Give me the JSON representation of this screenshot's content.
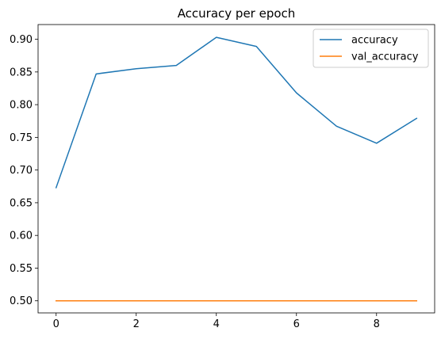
{
  "chart_data": {
    "type": "line",
    "title": "Accuracy per epoch",
    "xlabel": "",
    "ylabel": "",
    "x": [
      0,
      1,
      2,
      3,
      4,
      5,
      6,
      7,
      8,
      9
    ],
    "xlim": [
      -0.45,
      9.45
    ],
    "ylim": [
      0.4815,
      0.9225
    ],
    "xticks": [
      0,
      2,
      4,
      6,
      8
    ],
    "xtick_labels": [
      "0",
      "2",
      "4",
      "6",
      "8"
    ],
    "yticks": [
      0.5,
      0.55,
      0.6,
      0.65,
      0.7,
      0.75,
      0.8,
      0.85,
      0.9
    ],
    "ytick_labels": [
      "0.50",
      "0.55",
      "0.60",
      "0.65",
      "0.70",
      "0.75",
      "0.80",
      "0.85",
      "0.90"
    ],
    "grid": false,
    "legend_position": "top-right",
    "series": [
      {
        "name": "accuracy",
        "color": "#1f77b4",
        "values": [
          0.673,
          0.847,
          0.855,
          0.86,
          0.903,
          0.889,
          0.818,
          0.767,
          0.741,
          0.779
        ]
      },
      {
        "name": "val_accuracy",
        "color": "#ff7f0e",
        "values": [
          0.5,
          0.5,
          0.5,
          0.5,
          0.5,
          0.5,
          0.5,
          0.5,
          0.5,
          0.5
        ]
      }
    ]
  }
}
